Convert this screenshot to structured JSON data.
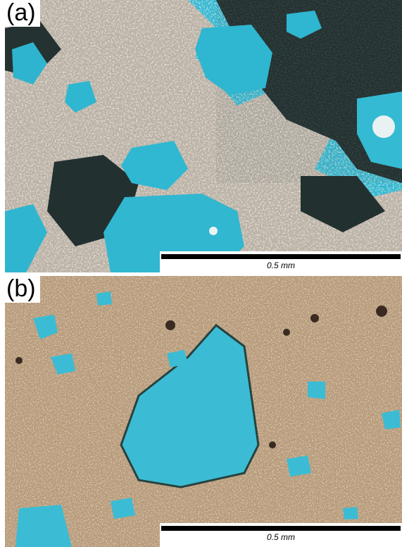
{
  "figure": {
    "panels": [
      {
        "label": "(a)",
        "scale_label": "0.5 mm",
        "colors": {
          "pore": "#2fb6d0",
          "matrix_dark": "#1f2a2a",
          "crystal": "#e7ddd0"
        }
      },
      {
        "label": "(b)",
        "scale_label": "0.5 mm",
        "colors": {
          "pore": "#3bbcd4",
          "matrix": "#b89a78",
          "crystal": "#efe7dc"
        }
      }
    ]
  }
}
